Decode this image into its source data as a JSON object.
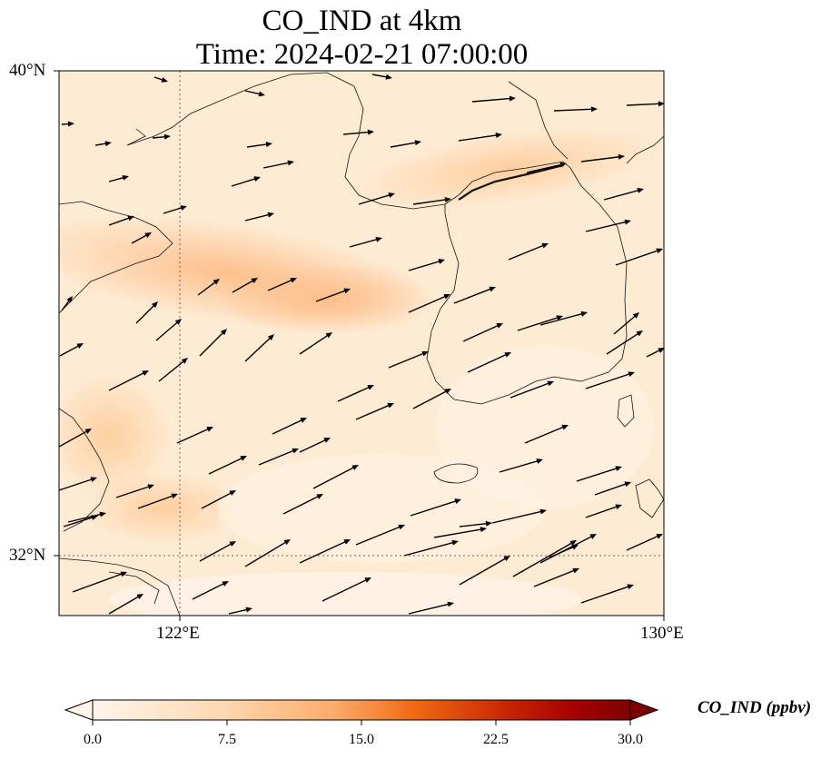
{
  "title": {
    "line1": "CO_IND at 4km",
    "line2": "Time: 2024-02-21 07:00:00"
  },
  "axes": {
    "lat_labels": [
      "40°N",
      "32°N"
    ],
    "lon_labels": [
      "122°E",
      "130°E"
    ],
    "lat_range": [
      31,
      40
    ],
    "lon_range": [
      120,
      130
    ],
    "gridlines": "dotted at 122°E and 32°N"
  },
  "colorbar": {
    "label": "CO_IND (ppbv)",
    "ticks": [
      "0.0",
      "7.5",
      "15.0",
      "22.5",
      "30.0"
    ],
    "range": [
      0,
      30
    ],
    "colormap": "Oranges-to-dark-red",
    "colors": [
      "#fff5eb",
      "#fdd0a2",
      "#fd8d3c",
      "#d94801",
      "#7f0000"
    ]
  },
  "chart_data": {
    "type": "heatmap",
    "title": "CO_IND at 4km",
    "subtitle": "Time: 2024-02-21 07:00:00",
    "field": "CO_IND concentration (ppbv) with wind vectors",
    "value_range": [
      0,
      30
    ],
    "overlay": "wind vectors pointing mostly east-northeast",
    "high_bands": [
      {
        "region": "northwest Yellow Sea band near 37°N",
        "approx_value": 9
      },
      {
        "region": "north Korea east coast near 39°N",
        "approx_value": 7
      },
      {
        "region": "China east coast near 34°N",
        "approx_value": 7
      }
    ]
  }
}
